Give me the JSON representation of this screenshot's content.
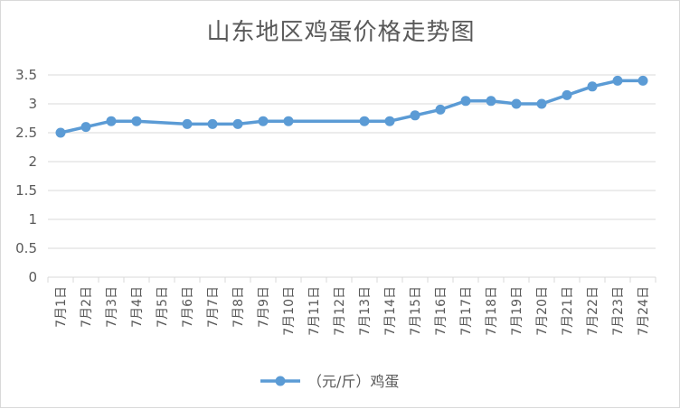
{
  "chart_data": {
    "type": "line",
    "title": "山东地区鸡蛋价格走势图",
    "categories": [
      "7月1日",
      "7月2日",
      "7月3日",
      "7月4日",
      "7月5日",
      "7月6日",
      "7月7日",
      "7月8日",
      "7月9日",
      "7月10日",
      "7月11日",
      "7月12日",
      "7月13日",
      "7月14日",
      "7月15日",
      "7月16日",
      "7月17日",
      "7月18日",
      "7月19日",
      "7月20日",
      "7月21日",
      "7月22日",
      "7月23日",
      "7月24日"
    ],
    "series": [
      {
        "name": "（元/斤）鸡蛋",
        "values": [
          2.5,
          2.6,
          2.7,
          2.7,
          null,
          2.65,
          2.65,
          2.65,
          2.7,
          2.7,
          null,
          null,
          2.7,
          2.7,
          2.8,
          2.9,
          3.05,
          3.05,
          3.0,
          3.0,
          3.15,
          3.3,
          3.4,
          3.4
        ]
      }
    ],
    "ylim": [
      0,
      3.5
    ],
    "yticks": [
      "0",
      "0.5",
      "1",
      "1.5",
      "2",
      "2.5",
      "3",
      "3.5"
    ],
    "grid": true,
    "legend_position": "bottom",
    "colors": {
      "series": "#5b9bd5",
      "grid": "#d9d9d9",
      "text": "#595959"
    }
  }
}
